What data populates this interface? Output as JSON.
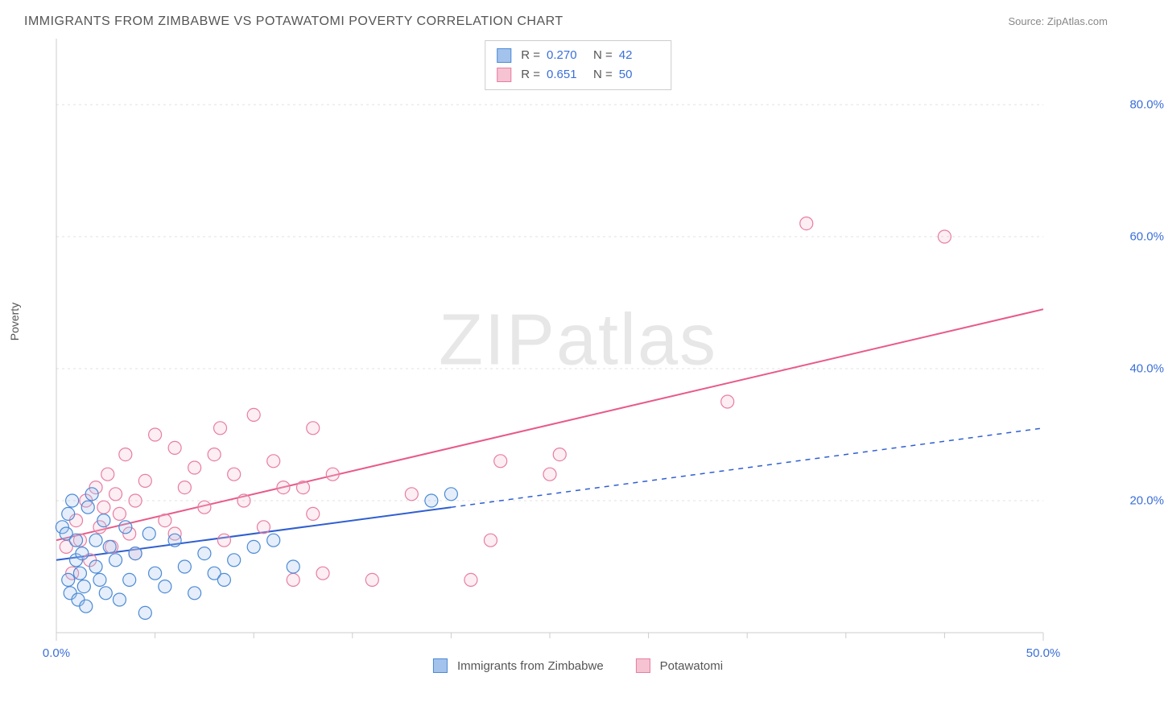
{
  "header": {
    "title": "IMMIGRANTS FROM ZIMBABWE VS POTAWATOMI POVERTY CORRELATION CHART",
    "source_label": "Source: ",
    "source_name": "ZipAtlas.com"
  },
  "chart": {
    "type": "scatter",
    "ylabel": "Poverty",
    "watermark_text_1": "ZIP",
    "watermark_text_2": "atlas",
    "background_color": "#ffffff",
    "grid_color": "#e0e0e0",
    "axis_color": "#cccccc",
    "tick_color": "#cccccc",
    "label_color": "#3b6fd8",
    "xlim": [
      0,
      50
    ],
    "ylim": [
      0,
      90
    ],
    "x_ticks": [
      0,
      50
    ],
    "x_tick_labels": [
      "0.0%",
      "50.0%"
    ],
    "x_minor_ticks": [
      5,
      10,
      15,
      20,
      25,
      30,
      35,
      40,
      45
    ],
    "y_ticks": [
      20,
      40,
      60,
      80
    ],
    "y_tick_labels": [
      "20.0%",
      "40.0%",
      "60.0%",
      "80.0%"
    ],
    "marker_radius": 8,
    "marker_stroke_width": 1.2,
    "marker_fill_opacity": 0.28,
    "line_width": 2,
    "series": [
      {
        "name": "Immigrants from Zimbabwe",
        "color_stroke": "#4b8ad6",
        "color_fill": "#a3c3ec",
        "line_color": "#2f5fd0",
        "R": "0.270",
        "N": "42",
        "trend": {
          "x1": 0,
          "y1": 11,
          "x2": 20,
          "y2": 19,
          "dash_x2": 50,
          "dash_y2": 31
        },
        "points": [
          [
            0.3,
            16
          ],
          [
            0.5,
            15
          ],
          [
            0.6,
            18
          ],
          [
            0.6,
            8
          ],
          [
            0.7,
            6
          ],
          [
            0.8,
            20
          ],
          [
            1.0,
            14
          ],
          [
            1.0,
            11
          ],
          [
            1.1,
            5
          ],
          [
            1.2,
            9
          ],
          [
            1.3,
            12
          ],
          [
            1.4,
            7
          ],
          [
            1.5,
            4
          ],
          [
            1.6,
            19
          ],
          [
            1.8,
            21
          ],
          [
            2.0,
            10
          ],
          [
            2.0,
            14
          ],
          [
            2.2,
            8
          ],
          [
            2.4,
            17
          ],
          [
            2.5,
            6
          ],
          [
            2.7,
            13
          ],
          [
            3.0,
            11
          ],
          [
            3.2,
            5
          ],
          [
            3.5,
            16
          ],
          [
            3.7,
            8
          ],
          [
            4.0,
            12
          ],
          [
            4.5,
            3
          ],
          [
            4.7,
            15
          ],
          [
            5.0,
            9
          ],
          [
            5.5,
            7
          ],
          [
            6.0,
            14
          ],
          [
            6.5,
            10
          ],
          [
            7.0,
            6
          ],
          [
            7.5,
            12
          ],
          [
            8.0,
            9
          ],
          [
            8.5,
            8
          ],
          [
            9.0,
            11
          ],
          [
            10.0,
            13
          ],
          [
            11.0,
            14
          ],
          [
            12.0,
            10
          ],
          [
            19.0,
            20
          ],
          [
            20.0,
            21
          ]
        ]
      },
      {
        "name": "Potawatomi",
        "color_stroke": "#e87da1",
        "color_fill": "#f6c3d3",
        "line_color": "#e85a88",
        "R": "0.651",
        "N": "50",
        "trend": {
          "x1": 0,
          "y1": 14,
          "x2": 50,
          "y2": 49
        },
        "points": [
          [
            0.5,
            13
          ],
          [
            0.8,
            9
          ],
          [
            1.0,
            17
          ],
          [
            1.2,
            14
          ],
          [
            1.5,
            20
          ],
          [
            1.7,
            11
          ],
          [
            2.0,
            22
          ],
          [
            2.2,
            16
          ],
          [
            2.4,
            19
          ],
          [
            2.6,
            24
          ],
          [
            2.8,
            13
          ],
          [
            3.0,
            21
          ],
          [
            3.2,
            18
          ],
          [
            3.5,
            27
          ],
          [
            3.7,
            15
          ],
          [
            4.0,
            20
          ],
          [
            4.5,
            23
          ],
          [
            5.0,
            30
          ],
          [
            5.5,
            17
          ],
          [
            6.0,
            28
          ],
          [
            6.5,
            22
          ],
          [
            7.0,
            25
          ],
          [
            7.5,
            19
          ],
          [
            8.0,
            27
          ],
          [
            8.3,
            31
          ],
          [
            8.5,
            14
          ],
          [
            9.0,
            24
          ],
          [
            9.5,
            20
          ],
          [
            10.0,
            33
          ],
          [
            10.5,
            16
          ],
          [
            11.0,
            26
          ],
          [
            11.5,
            22
          ],
          [
            12.0,
            8
          ],
          [
            12.5,
            22
          ],
          [
            13.0,
            18
          ],
          [
            13.5,
            9
          ],
          [
            14.0,
            24
          ],
          [
            16.0,
            8
          ],
          [
            18.0,
            21
          ],
          [
            21.0,
            8
          ],
          [
            22.0,
            14
          ],
          [
            22.5,
            26
          ],
          [
            25.0,
            24
          ],
          [
            25.5,
            27
          ],
          [
            34.0,
            35
          ],
          [
            38.0,
            62
          ],
          [
            45.0,
            60
          ],
          [
            13.0,
            31
          ],
          [
            6.0,
            15
          ],
          [
            4.0,
            12
          ]
        ]
      }
    ],
    "stat_legend": {
      "R_label": "R =",
      "N_label": "N ="
    }
  }
}
